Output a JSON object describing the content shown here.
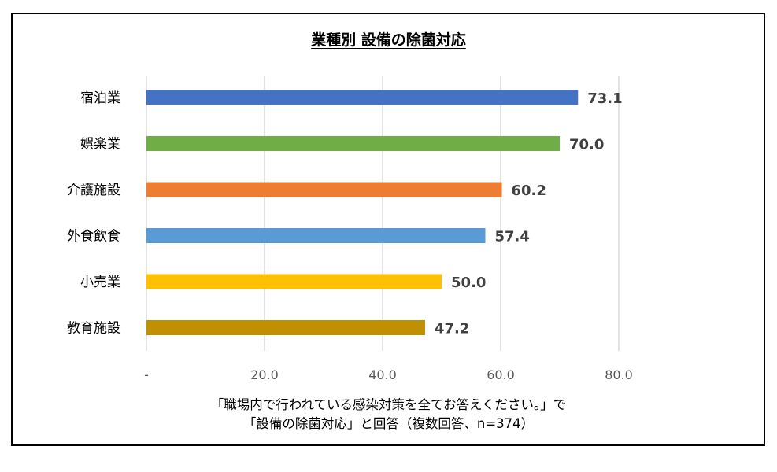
{
  "title": "業種別 設備の除菌対応",
  "note_lines": [
    "「職場内で行われている感染対策を全てお答えください。」で",
    "「設備の除菌対応」と回答（複数回答、n=374）"
  ],
  "chart_data": {
    "type": "bar",
    "orientation": "horizontal",
    "title": "業種別 設備の除菌対応",
    "categories": [
      "宿泊業",
      "娯楽業",
      "介護施設",
      "外食飲食",
      "小売業",
      "教育施設"
    ],
    "values": [
      73.1,
      70.0,
      60.2,
      57.4,
      50.0,
      47.2
    ],
    "value_labels": [
      "73.1",
      "70.0",
      "60.2",
      "57.4",
      "50.0",
      "47.2"
    ],
    "colors": [
      "#4472C4",
      "#70AD47",
      "#ED7D31",
      "#5B9BD5",
      "#FFC000",
      "#BF9000"
    ],
    "xlim": [
      0,
      80
    ],
    "x_ticks": [
      0,
      20,
      40,
      60,
      80
    ],
    "x_tick_labels": [
      "-",
      "20.0",
      "40.0",
      "60.0",
      "80.0"
    ],
    "grid": true,
    "gridline_color": "#D9D9D9",
    "legend": "none"
  }
}
